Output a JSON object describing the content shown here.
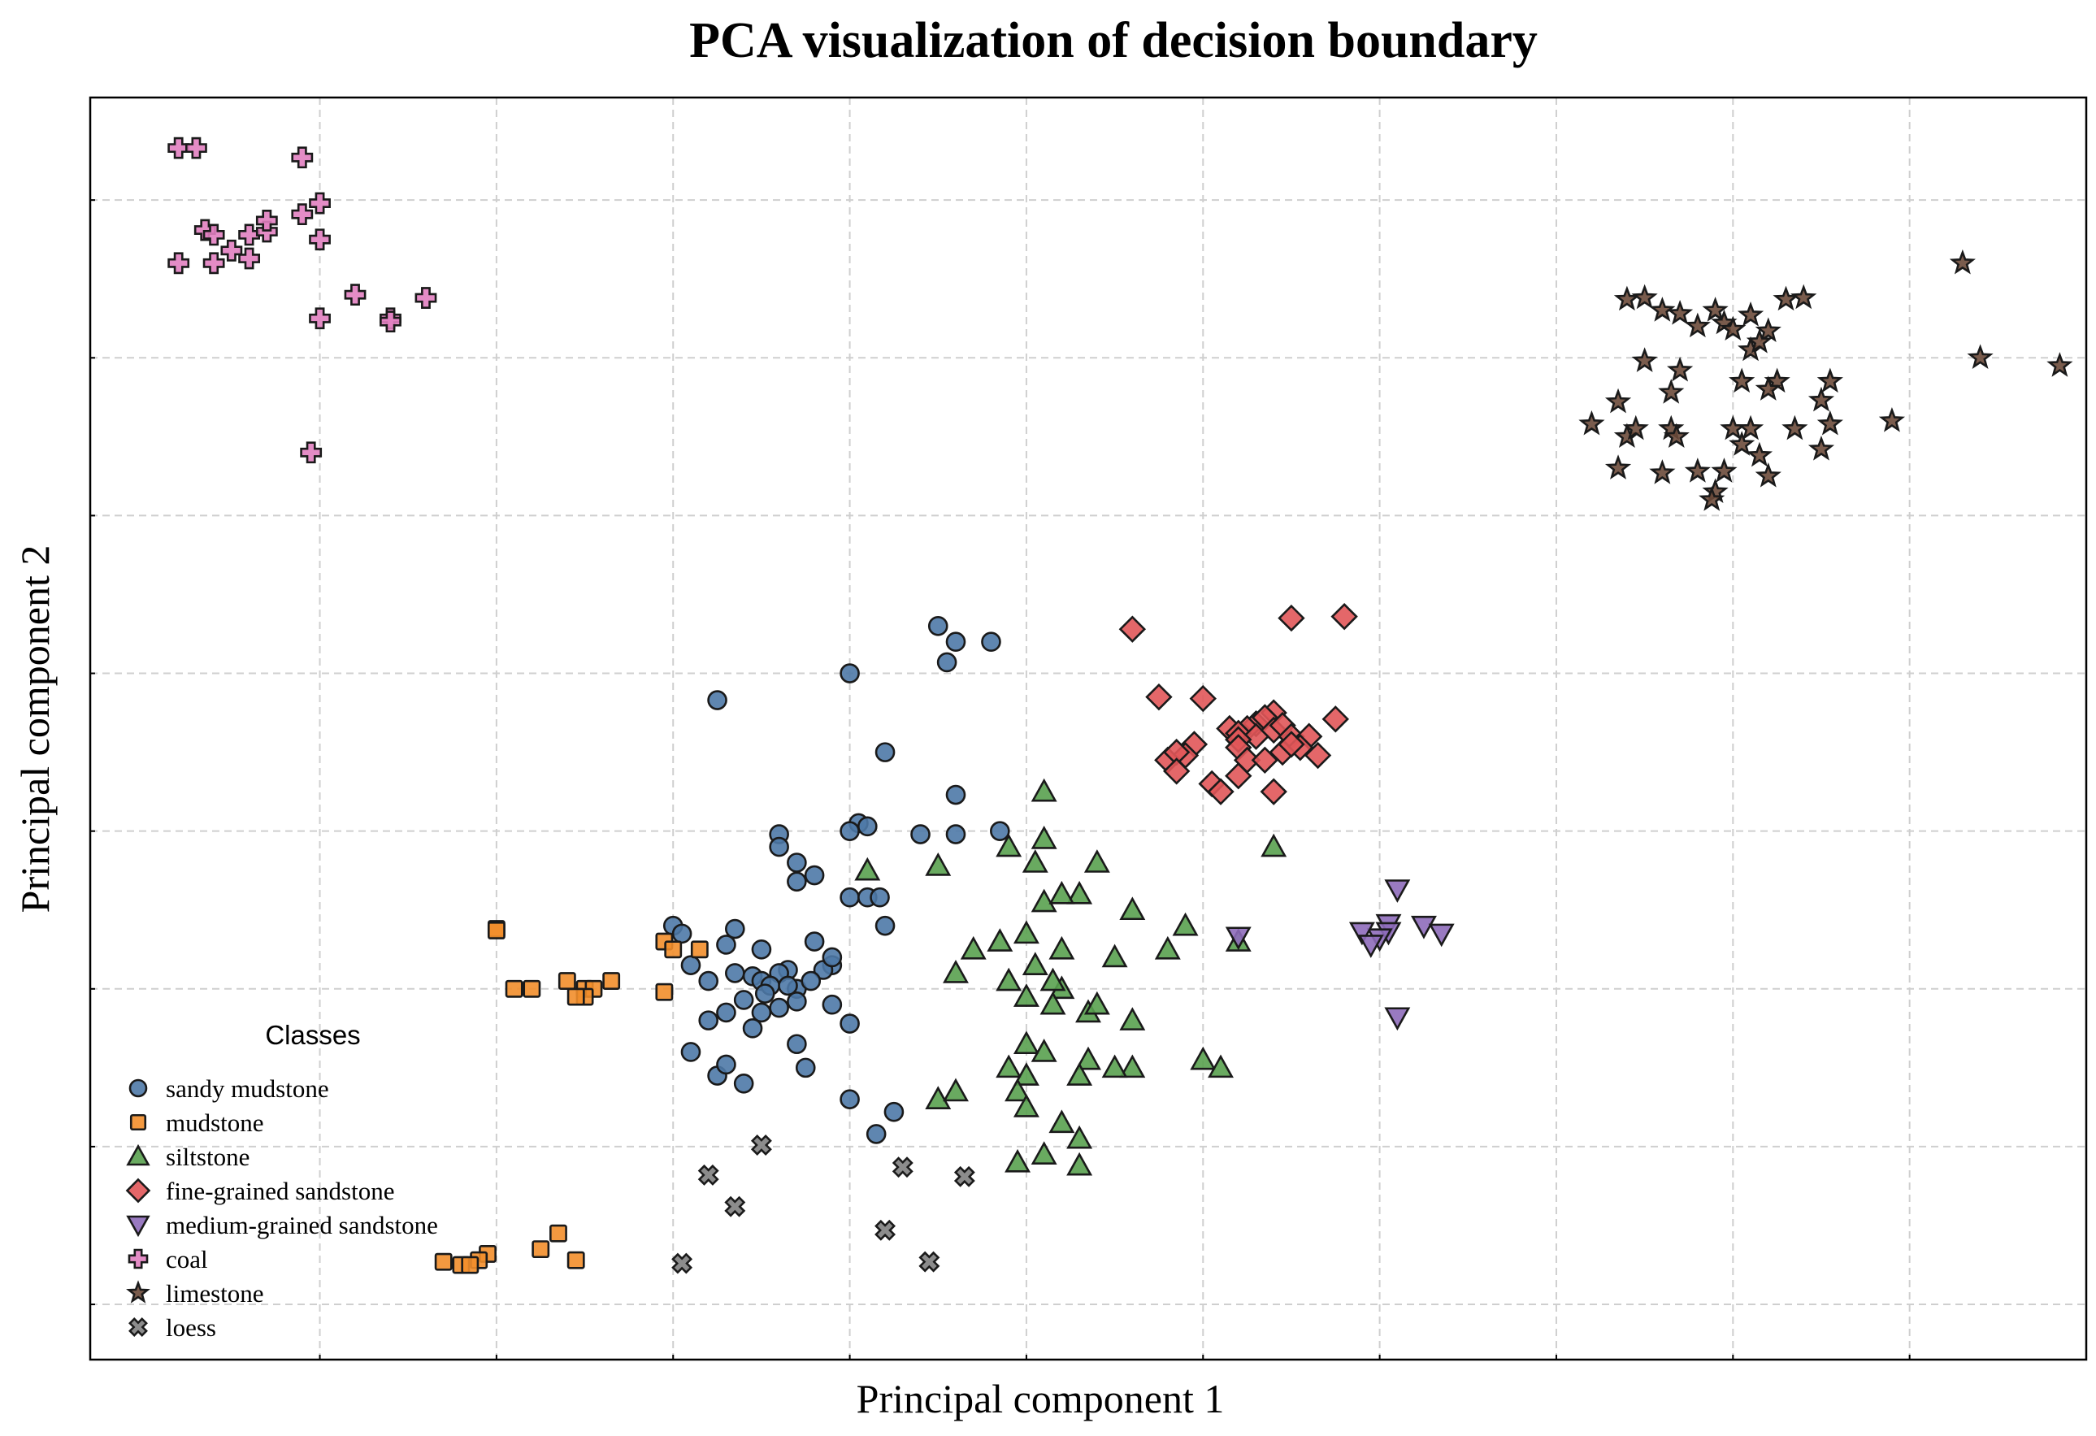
{
  "chart_data": {
    "type": "scatter",
    "title": "PCA visualization of decision boundary",
    "xlabel": "Principal component 1",
    "ylabel": "Principal component 2",
    "xlim": [
      -3.3,
      8.0
    ],
    "ylim": [
      -2.35,
      5.65
    ],
    "grid": true,
    "legend": {
      "title": "Classes",
      "position": "bottom-left"
    },
    "series": [
      {
        "name": "sandy mudstone",
        "marker": "circle",
        "color": "#4e79a7",
        "points": [
          [
            1.0,
            2.0
          ],
          [
            1.8,
            2.2
          ],
          [
            1.6,
            2.2
          ],
          [
            1.5,
            2.3
          ],
          [
            1.55,
            2.07
          ],
          [
            0.25,
            1.83
          ],
          [
            1.2,
            1.5
          ],
          [
            1.6,
            1.23
          ],
          [
            1.05,
            1.05
          ],
          [
            1.1,
            1.03
          ],
          [
            1.0,
            1.0
          ],
          [
            0.6,
            0.98
          ],
          [
            0.6,
            0.9
          ],
          [
            0.7,
            0.8
          ],
          [
            0.8,
            0.72
          ],
          [
            0.7,
            0.68
          ],
          [
            1.4,
            0.98
          ],
          [
            1.6,
            0.98
          ],
          [
            1.85,
            1.0
          ],
          [
            1.0,
            0.58
          ],
          [
            1.1,
            0.58
          ],
          [
            1.17,
            0.58
          ],
          [
            1.2,
            0.4
          ],
          [
            0.0,
            0.4
          ],
          [
            0.05,
            0.35
          ],
          [
            0.35,
            0.38
          ],
          [
            0.3,
            0.28
          ],
          [
            0.5,
            0.25
          ],
          [
            0.8,
            0.3
          ],
          [
            0.9,
            0.15
          ],
          [
            0.1,
            0.15
          ],
          [
            0.2,
            0.05
          ],
          [
            0.35,
            0.1
          ],
          [
            0.45,
            0.08
          ],
          [
            0.65,
            0.12
          ],
          [
            0.85,
            0.12
          ],
          [
            0.9,
            0.2
          ],
          [
            0.5,
            0.05
          ],
          [
            0.7,
            0.0
          ],
          [
            0.78,
            0.05
          ],
          [
            0.7,
            -0.08
          ],
          [
            0.6,
            0.1
          ],
          [
            0.55,
            0.02
          ],
          [
            0.65,
            0.02
          ],
          [
            0.52,
            -0.03
          ],
          [
            0.4,
            -0.07
          ],
          [
            0.6,
            -0.12
          ],
          [
            0.3,
            -0.15
          ],
          [
            0.45,
            -0.25
          ],
          [
            0.5,
            -0.15
          ],
          [
            0.2,
            -0.2
          ],
          [
            1.0,
            -0.22
          ],
          [
            0.9,
            -0.1
          ],
          [
            0.7,
            -0.35
          ],
          [
            0.75,
            -0.5
          ],
          [
            0.1,
            -0.4
          ],
          [
            0.25,
            -0.55
          ],
          [
            0.4,
            -0.6
          ],
          [
            0.3,
            -0.48
          ],
          [
            1.0,
            -0.7
          ],
          [
            1.25,
            -0.78
          ],
          [
            1.15,
            -0.92
          ]
        ]
      },
      {
        "name": "mudstone",
        "marker": "square",
        "color": "#f28e2b",
        "points": [
          [
            -1.0,
            0.38
          ],
          [
            -1.0,
            0.37
          ],
          [
            -0.8,
            0.0
          ],
          [
            -0.9,
            0.0
          ],
          [
            -0.6,
            0.05
          ],
          [
            -0.5,
            0.0
          ],
          [
            -0.45,
            0.0
          ],
          [
            -0.05,
            0.3
          ],
          [
            0.0,
            0.25
          ],
          [
            0.15,
            0.25
          ],
          [
            -0.35,
            0.05
          ],
          [
            -0.5,
            -0.05
          ],
          [
            -0.55,
            -0.05
          ],
          [
            -0.05,
            -0.02
          ],
          [
            -0.55,
            -1.72
          ],
          [
            -0.65,
            -1.55
          ],
          [
            -0.75,
            -1.65
          ],
          [
            -1.05,
            -1.68
          ],
          [
            -1.1,
            -1.72
          ],
          [
            -1.2,
            -1.75
          ],
          [
            -1.15,
            -1.75
          ],
          [
            -1.3,
            -1.73
          ]
        ]
      },
      {
        "name": "siltstone",
        "marker": "triangle-up",
        "color": "#59a14f",
        "points": [
          [
            2.1,
            1.25
          ],
          [
            2.4,
            0.8
          ],
          [
            3.4,
            0.9
          ],
          [
            2.1,
            0.95
          ],
          [
            2.3,
            0.6
          ],
          [
            1.1,
            0.75
          ],
          [
            1.5,
            0.78
          ],
          [
            1.9,
            0.9
          ],
          [
            2.05,
            0.8
          ],
          [
            2.1,
            0.55
          ],
          [
            2.2,
            0.6
          ],
          [
            2.0,
            0.35
          ],
          [
            2.5,
            0.2
          ],
          [
            2.6,
            0.5
          ],
          [
            2.2,
            0.25
          ],
          [
            2.05,
            0.15
          ],
          [
            2.9,
            0.4
          ],
          [
            3.2,
            0.3
          ],
          [
            2.8,
            0.25
          ],
          [
            1.85,
            0.3
          ],
          [
            1.7,
            0.25
          ],
          [
            1.6,
            0.1
          ],
          [
            1.9,
            0.05
          ],
          [
            2.0,
            -0.05
          ],
          [
            2.2,
            0.0
          ],
          [
            2.35,
            -0.15
          ],
          [
            2.4,
            -0.1
          ],
          [
            2.6,
            -0.2
          ],
          [
            2.0,
            -0.35
          ],
          [
            2.1,
            -0.4
          ],
          [
            1.9,
            -0.5
          ],
          [
            2.0,
            -0.55
          ],
          [
            2.6,
            -0.5
          ],
          [
            2.35,
            -0.45
          ],
          [
            2.5,
            -0.5
          ],
          [
            3.0,
            -0.45
          ],
          [
            3.1,
            -0.5
          ],
          [
            2.3,
            -0.55
          ],
          [
            1.5,
            -0.7
          ],
          [
            1.6,
            -0.65
          ],
          [
            1.95,
            -0.65
          ],
          [
            2.0,
            -0.75
          ],
          [
            2.2,
            -0.85
          ],
          [
            2.3,
            -0.95
          ],
          [
            1.95,
            -1.1
          ],
          [
            2.1,
            -1.05
          ],
          [
            2.3,
            -1.12
          ],
          [
            2.15,
            0.05
          ],
          [
            2.15,
            -0.1
          ]
        ]
      },
      {
        "name": "fine-grained sandstone",
        "marker": "diamond",
        "color": "#e15759",
        "points": [
          [
            2.6,
            2.28
          ],
          [
            3.5,
            2.35
          ],
          [
            3.8,
            2.36
          ],
          [
            2.75,
            1.85
          ],
          [
            3.0,
            1.84
          ],
          [
            3.4,
            1.75
          ],
          [
            3.3,
            1.68
          ],
          [
            3.75,
            1.71
          ],
          [
            3.15,
            1.65
          ],
          [
            3.25,
            1.65
          ],
          [
            3.2,
            1.62
          ],
          [
            3.3,
            1.6
          ],
          [
            3.35,
            1.72
          ],
          [
            3.4,
            1.64
          ],
          [
            3.45,
            1.67
          ],
          [
            3.5,
            1.6
          ],
          [
            3.6,
            1.6
          ],
          [
            3.55,
            1.53
          ],
          [
            3.65,
            1.48
          ],
          [
            3.2,
            1.58
          ],
          [
            3.2,
            1.53
          ],
          [
            3.25,
            1.45
          ],
          [
            3.35,
            1.45
          ],
          [
            2.95,
            1.55
          ],
          [
            2.9,
            1.48
          ],
          [
            2.8,
            1.45
          ],
          [
            2.85,
            1.5
          ],
          [
            2.85,
            1.38
          ],
          [
            3.05,
            1.3
          ],
          [
            3.2,
            1.35
          ],
          [
            3.1,
            1.25
          ],
          [
            3.45,
            1.5
          ],
          [
            3.5,
            1.55
          ],
          [
            3.4,
            1.25
          ]
        ]
      },
      {
        "name": "medium-grained sandstone",
        "marker": "triangle-down",
        "color": "#8e6cba",
        "points": [
          [
            4.1,
            0.63
          ],
          [
            4.05,
            0.41
          ],
          [
            4.05,
            0.36
          ],
          [
            4.0,
            0.32
          ],
          [
            3.9,
            0.36
          ],
          [
            3.95,
            0.28
          ],
          [
            4.25,
            0.4
          ],
          [
            4.35,
            0.35
          ],
          [
            3.2,
            0.33
          ],
          [
            4.1,
            -0.18
          ]
        ]
      },
      {
        "name": "coal",
        "marker": "plus",
        "color": "#e17fc0",
        "points": [
          [
            -2.8,
            5.33
          ],
          [
            -2.7,
            5.33
          ],
          [
            -2.1,
            5.27
          ],
          [
            -2.0,
            4.98
          ],
          [
            -2.65,
            4.81
          ],
          [
            -2.6,
            4.78
          ],
          [
            -2.4,
            4.78
          ],
          [
            -2.3,
            4.8
          ],
          [
            -2.1,
            4.91
          ],
          [
            -2.3,
            4.87
          ],
          [
            -2.0,
            4.75
          ],
          [
            -2.5,
            4.68
          ],
          [
            -2.4,
            4.63
          ],
          [
            -2.8,
            4.6
          ],
          [
            -2.6,
            4.6
          ],
          [
            -1.8,
            4.4
          ],
          [
            -1.4,
            4.38
          ],
          [
            -1.6,
            4.25
          ],
          [
            -2.0,
            4.25
          ],
          [
            -1.6,
            4.23
          ],
          [
            -2.05,
            3.4
          ]
        ]
      },
      {
        "name": "limestone",
        "marker": "star",
        "color": "#6b4a3a",
        "points": [
          [
            5.4,
            4.37
          ],
          [
            5.5,
            4.38
          ],
          [
            5.6,
            4.3
          ],
          [
            5.7,
            4.28
          ],
          [
            5.9,
            4.3
          ],
          [
            5.8,
            4.2
          ],
          [
            5.95,
            4.22
          ],
          [
            6.0,
            4.18
          ],
          [
            6.1,
            4.27
          ],
          [
            6.2,
            4.17
          ],
          [
            6.3,
            4.37
          ],
          [
            6.4,
            4.38
          ],
          [
            7.3,
            4.6
          ],
          [
            6.1,
            4.05
          ],
          [
            6.15,
            4.1
          ],
          [
            5.5,
            3.98
          ],
          [
            5.7,
            3.92
          ],
          [
            6.05,
            3.85
          ],
          [
            6.25,
            3.85
          ],
          [
            6.55,
            3.85
          ],
          [
            7.4,
            4.0
          ],
          [
            7.85,
            3.95
          ],
          [
            5.35,
            3.72
          ],
          [
            5.65,
            3.78
          ],
          [
            6.2,
            3.8
          ],
          [
            6.5,
            3.73
          ],
          [
            5.2,
            3.58
          ],
          [
            5.4,
            3.5
          ],
          [
            5.45,
            3.55
          ],
          [
            6.0,
            3.55
          ],
          [
            6.1,
            3.55
          ],
          [
            6.35,
            3.55
          ],
          [
            6.55,
            3.58
          ],
          [
            6.9,
            3.6
          ],
          [
            5.65,
            3.55
          ],
          [
            5.68,
            3.5
          ],
          [
            6.05,
            3.45
          ],
          [
            6.5,
            3.42
          ],
          [
            5.8,
            3.28
          ],
          [
            5.95,
            3.28
          ],
          [
            6.2,
            3.25
          ],
          [
            5.35,
            3.3
          ],
          [
            5.6,
            3.27
          ],
          [
            6.15,
            3.38
          ],
          [
            5.9,
            3.15
          ],
          [
            5.88,
            3.1
          ]
        ]
      },
      {
        "name": "loess",
        "marker": "x",
        "color": "#7f7f7f",
        "points": [
          [
            0.35,
            -1.38
          ],
          [
            0.2,
            -1.18
          ],
          [
            0.5,
            -0.99
          ],
          [
            1.3,
            -1.13
          ],
          [
            1.65,
            -1.19
          ],
          [
            1.2,
            -1.53
          ],
          [
            1.45,
            -1.73
          ],
          [
            0.05,
            -1.74
          ]
        ]
      }
    ]
  }
}
